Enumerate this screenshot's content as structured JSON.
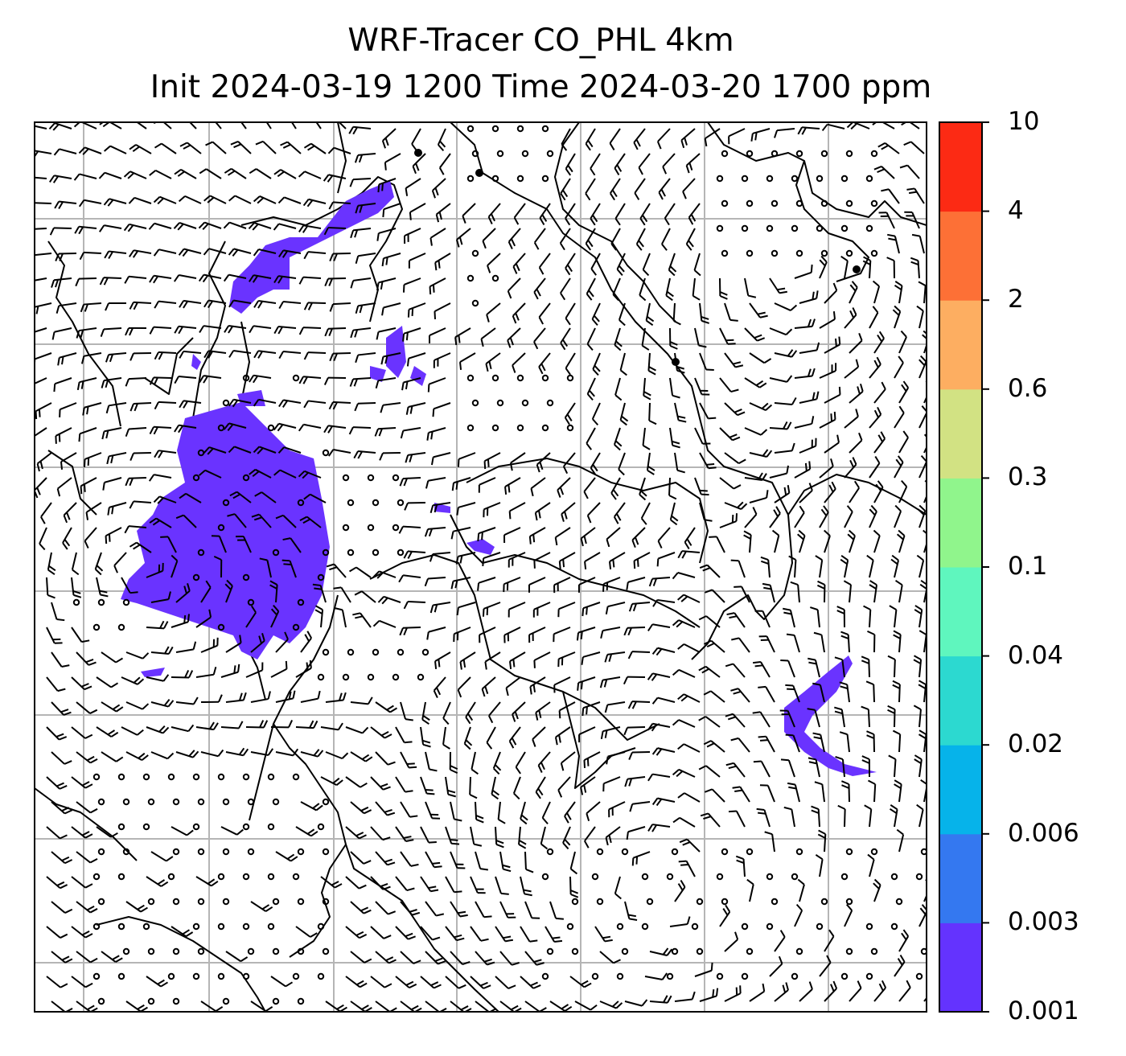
{
  "title": {
    "line1": "WRF-Tracer CO_PHL 4km",
    "line2": "Init 2024-03-19 1200 Time 2024-03-20 1700 ppm"
  },
  "map": {
    "projection": "lambert-conformal",
    "gridlines": true,
    "coastlines": true,
    "wind_barbs": true,
    "tracer_fill_color": "#6a33ff"
  },
  "colorbar": {
    "labels": [
      "0.001",
      "0.003",
      "0.006",
      "0.02",
      "0.04",
      "0.1",
      "0.3",
      "0.6",
      "2",
      "4",
      "10"
    ],
    "colors": [
      "#6433fe",
      "#3478f0",
      "#06b3ea",
      "#2cd9d0",
      "#5ff6be",
      "#90f58c",
      "#d2e283",
      "#fdae61",
      "#fd7036",
      "#fc2a14"
    ]
  }
}
